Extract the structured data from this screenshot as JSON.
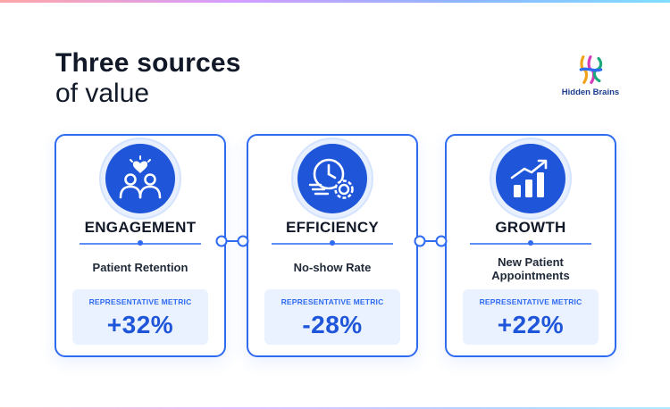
{
  "title": {
    "line1": "Three sources",
    "line2": "of value"
  },
  "brand": {
    "name": "Hidden Brains",
    "icon": "hb-logo-icon"
  },
  "colors": {
    "accent": "#2f6bf1",
    "icon_fill": "#1f56d9",
    "metric_bg": "#eaf1ff"
  },
  "cards": [
    {
      "heading": "ENGAGEMENT",
      "icon": "people-heart-icon",
      "subtitle": "Patient Retention",
      "metric_label": "REPRESENTATIVE METRIC",
      "metric_value": "+32%"
    },
    {
      "heading": "EFFICIENCY",
      "icon": "clock-gear-icon",
      "subtitle": "No-show Rate",
      "metric_label": "REPRESENTATIVE METRIC",
      "metric_value": "-28%"
    },
    {
      "heading": "GROWTH",
      "icon": "growth-chart-icon",
      "subtitle_line1": "New Patient",
      "subtitle_line2": "Appointments",
      "metric_label": "REPRESENTATIVE METRIC",
      "metric_value": "+22%"
    }
  ]
}
